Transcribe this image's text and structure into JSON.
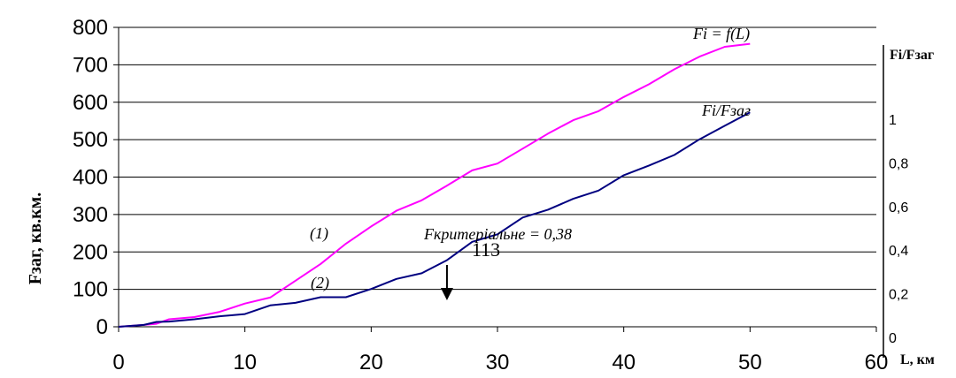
{
  "chart_data": {
    "type": "line",
    "xlabel": "L, км",
    "ylabel": "Fзаг, кв.км.",
    "y2label": "Fi/Fзаг",
    "xlim": [
      0,
      60
    ],
    "ylim": [
      0,
      800
    ],
    "y2lim": [
      0,
      1.3
    ],
    "grid": true,
    "x_ticks": [
      "0",
      "10",
      "20",
      "30",
      "40",
      "50",
      "60"
    ],
    "y_ticks": [
      "0",
      "100",
      "200",
      "300",
      "400",
      "500",
      "600",
      "700",
      "800"
    ],
    "y2_ticks": [
      "0",
      "0,2",
      "0,4",
      "0,6",
      "0,8",
      "1"
    ],
    "series": [
      {
        "name": "Fi = f(L)",
        "color": "#ff00ff",
        "axis": "left",
        "x": [
          0,
          2,
          3,
          4,
          6,
          8,
          10,
          12,
          14,
          16,
          18,
          20,
          22,
          24,
          26,
          28,
          30,
          32,
          34,
          36,
          38,
          40,
          42,
          44,
          46,
          48,
          50
        ],
        "y": [
          0,
          5,
          8,
          20,
          26,
          40,
          62,
          78,
          123,
          168,
          222,
          268,
          310,
          338,
          377,
          418,
          436,
          476,
          516,
          552,
          576,
          614,
          648,
          688,
          722,
          748,
          756
        ]
      },
      {
        "name": "Fi/Fзаг",
        "color": "#000080",
        "axis": "left",
        "x": [
          0,
          2,
          3,
          4,
          6,
          8,
          10,
          12,
          14,
          16,
          18,
          20,
          22,
          24,
          26,
          28,
          30,
          32,
          34,
          36,
          38,
          40,
          42,
          44,
          46,
          48,
          50
        ],
        "y": [
          0,
          5,
          13,
          14,
          20,
          28,
          34,
          57,
          64,
          79,
          79,
          101,
          128,
          143,
          178,
          227,
          247,
          292,
          313,
          342,
          364,
          405,
          431,
          459,
          501,
          537,
          573
        ]
      }
    ],
    "annotations": {
      "curve1_label": "(1)",
      "curve2_label": "(2)",
      "critical": "Fкритеріальне = 0,38",
      "critical_value": "113",
      "critical_x": 26
    }
  }
}
